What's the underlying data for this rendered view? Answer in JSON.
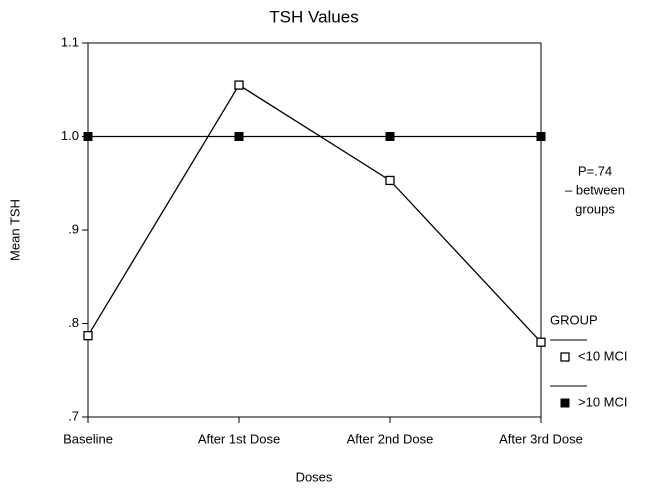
{
  "chart_data": {
    "type": "line",
    "title": "TSH Values",
    "x_label": "Doses",
    "y_label": "Mean TSH",
    "categories": [
      "Baseline",
      "After 1st Dose",
      "After 2nd Dose",
      "After 3rd Dose"
    ],
    "series": [
      {
        "name": "<10 MCI",
        "color": "#000000",
        "marker": "open-square",
        "values": [
          0.787,
          1.055,
          0.953,
          0.78
        ]
      },
      {
        "name": ">10 MCI",
        "color": "#000000",
        "marker": "filled-square",
        "values": [
          1.0,
          1.0,
          1.0,
          1.0
        ]
      }
    ],
    "ylim": [
      0.7,
      1.1
    ],
    "yticks": [
      {
        "value": 0.7,
        "label": ".7"
      },
      {
        "value": 0.8,
        "label": ".8"
      },
      {
        "value": 0.9,
        "label": ".9"
      },
      {
        "value": 1,
        "label": "1.0"
      },
      1.1
    ],
    "legend_title": "GROUP",
    "legend_position": "right",
    "annotation": [
      "P=.74",
      "– between",
      "groups"
    ]
  }
}
